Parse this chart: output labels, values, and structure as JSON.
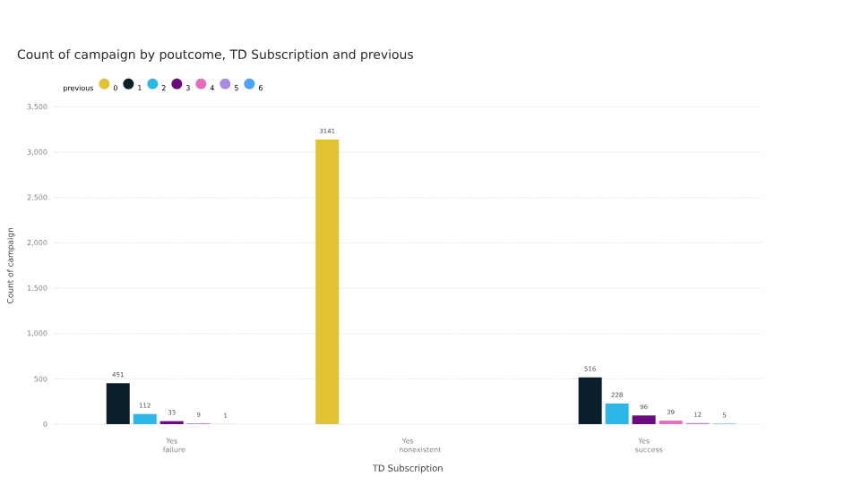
{
  "chart_data": {
    "type": "bar",
    "title": "Count of campaign by poutcome, TD Subscription and previous",
    "xlabel": "TD Subscription",
    "ylabel": "Count of campaign",
    "legend_title": "previous",
    "categories": [
      "Yes failure",
      "Yes nonexistent",
      "Yes success"
    ],
    "series": [
      {
        "name": "0",
        "color": "#e0c232",
        "values": [
          null,
          3141,
          null
        ]
      },
      {
        "name": "1",
        "color": "#0b1f2a",
        "values": [
          451,
          null,
          516
        ]
      },
      {
        "name": "2",
        "color": "#2bb8e6",
        "values": [
          112,
          null,
          228
        ]
      },
      {
        "name": "3",
        "color": "#6b0a7f",
        "values": [
          33,
          null,
          96
        ]
      },
      {
        "name": "4",
        "color": "#e66cc0",
        "values": [
          9,
          null,
          39
        ]
      },
      {
        "name": "5",
        "color": "#a98be0",
        "values": [
          1,
          null,
          12
        ]
      },
      {
        "name": "6",
        "color": "#4aa3ff",
        "values": [
          null,
          null,
          5
        ]
      }
    ],
    "ylim": [
      0,
      3500
    ],
    "yticks": [
      0,
      500,
      {
        "value": 1000,
        "label": "1,000"
      },
      {
        "value": 1500,
        "label": "1,500"
      },
      {
        "value": 2000,
        "label": "2,000"
      },
      {
        "value": 2500,
        "label": "2,500"
      },
      {
        "value": 3000,
        "label": "3,000"
      },
      {
        "value": 3500,
        "label": "3,500"
      }
    ],
    "grid": "y",
    "legend": "top left",
    "data_labels": true
  }
}
